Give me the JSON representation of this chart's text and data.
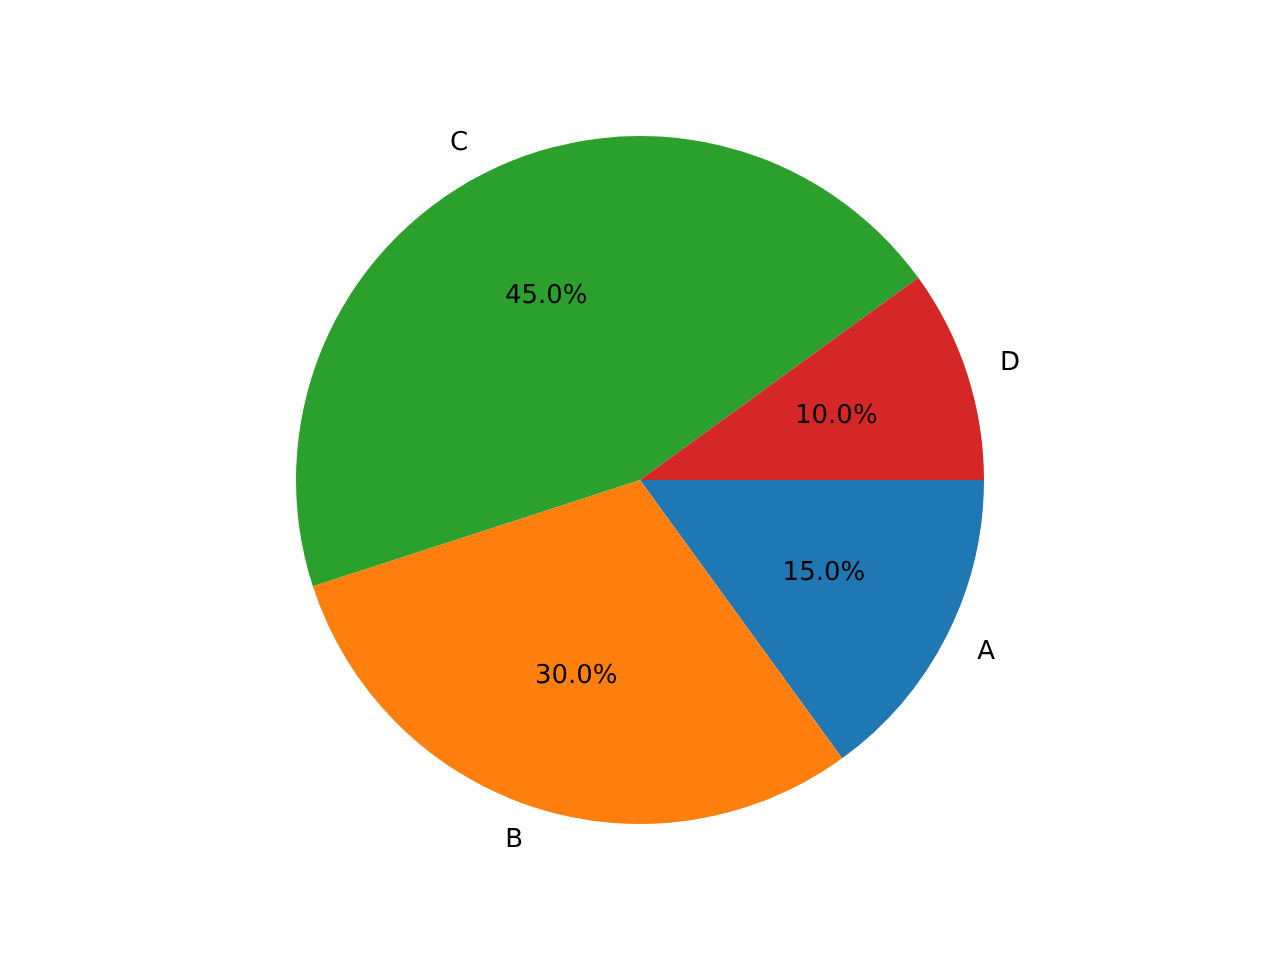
{
  "chart_data": {
    "type": "pie",
    "categories": [
      "A",
      "B",
      "C",
      "D"
    ],
    "values": [
      15,
      30,
      45,
      10
    ],
    "value_labels": [
      "15.0%",
      "30.0%",
      "45.0%",
      "10.0%"
    ],
    "colors": [
      "#1f77b4",
      "#ff7f0e",
      "#2ca02c",
      "#d62728"
    ],
    "legend": false
  }
}
